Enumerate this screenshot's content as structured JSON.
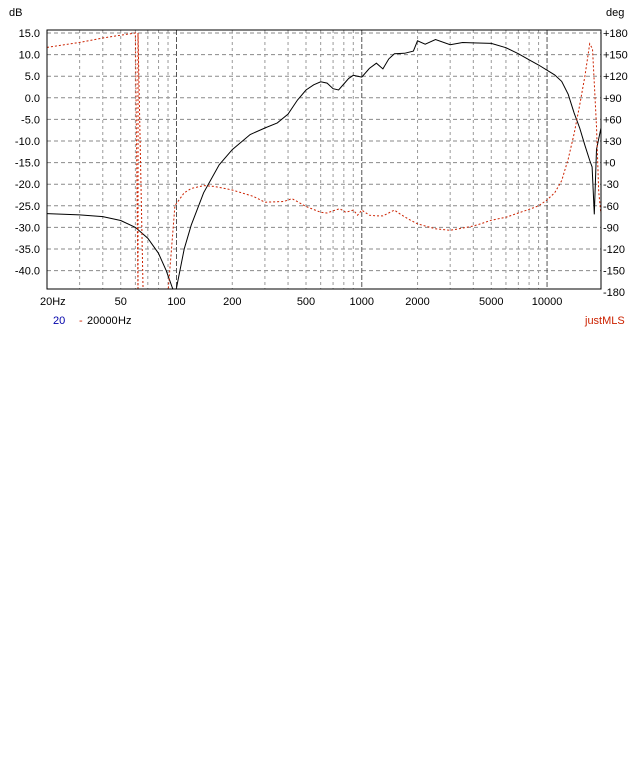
{
  "chart_data": {
    "type": "line",
    "y_unit": "dB",
    "y2_unit": "deg",
    "x_scale": "log",
    "xlim": [
      20,
      20000
    ],
    "ylim": [
      -45,
      15
    ],
    "y2lim": [
      -180,
      180
    ],
    "grid": true,
    "y_ticks": [
      "15.0",
      "10.0",
      "5.0",
      "0.0",
      "-5.0",
      "-10.0",
      "-15.0",
      "-20.0",
      "-25.0",
      "-30.0",
      "-35.0",
      "-40.0"
    ],
    "y_tick_values": [
      15,
      10,
      5,
      0,
      -5,
      -10,
      -15,
      -20,
      -25,
      -30,
      -35,
      -40
    ],
    "y2_ticks": [
      "+180",
      "+150",
      "+120",
      "+90",
      "+60",
      "+30",
      "+0",
      "-30",
      "-60",
      "-90",
      "-120",
      "-150",
      "-180"
    ],
    "y2_tick_values": [
      180,
      150,
      120,
      90,
      60,
      30,
      0,
      -30,
      -60,
      -90,
      -120,
      -150,
      -180
    ],
    "x_ticks": [
      "20Hz",
      "50",
      "100",
      "200",
      "500",
      "1000",
      "2000",
      "5000",
      "10000"
    ],
    "x_tick_values": [
      20,
      50,
      100,
      200,
      500,
      1000,
      2000,
      5000,
      10000
    ],
    "series": [
      {
        "axis": "left",
        "color": "#000000",
        "style": "solid",
        "points": [
          [
            20,
            -26.8
          ],
          [
            30,
            -27.1
          ],
          [
            40,
            -27.5
          ],
          [
            50,
            -28.4
          ],
          [
            60,
            -30.0
          ],
          [
            70,
            -32.5
          ],
          [
            80,
            -36.0
          ],
          [
            88,
            -40.0
          ],
          [
            95,
            -44.0
          ],
          [
            98,
            -45.0
          ],
          [
            100,
            -44.0
          ],
          [
            110,
            -35.0
          ],
          [
            120,
            -29.5
          ],
          [
            140,
            -22.0
          ],
          [
            170,
            -15.5
          ],
          [
            200,
            -12.0
          ],
          [
            250,
            -8.5
          ],
          [
            300,
            -7.0
          ],
          [
            350,
            -5.8
          ],
          [
            400,
            -3.8
          ],
          [
            450,
            -0.5
          ],
          [
            500,
            1.8
          ],
          [
            550,
            3.0
          ],
          [
            600,
            3.7
          ],
          [
            650,
            3.4
          ],
          [
            700,
            2.1
          ],
          [
            750,
            1.8
          ],
          [
            800,
            3.2
          ],
          [
            850,
            4.5
          ],
          [
            900,
            5.2
          ],
          [
            950,
            5.0
          ],
          [
            1000,
            4.8
          ],
          [
            1100,
            6.8
          ],
          [
            1200,
            8.0
          ],
          [
            1300,
            6.7
          ],
          [
            1400,
            9.0
          ],
          [
            1500,
            10.2
          ],
          [
            1700,
            10.3
          ],
          [
            1900,
            10.8
          ],
          [
            2000,
            13.2
          ],
          [
            2200,
            12.4
          ],
          [
            2500,
            13.5
          ],
          [
            3000,
            12.3
          ],
          [
            3500,
            12.8
          ],
          [
            4000,
            12.7
          ],
          [
            5000,
            12.6
          ],
          [
            6000,
            11.6
          ],
          [
            7000,
            10.2
          ],
          [
            8000,
            8.8
          ],
          [
            9000,
            7.6
          ],
          [
            10000,
            6.4
          ],
          [
            11000,
            5.3
          ],
          [
            12000,
            3.8
          ],
          [
            13000,
            0.8
          ],
          [
            14000,
            -3.5
          ],
          [
            15000,
            -7.0
          ],
          [
            16000,
            -11.0
          ],
          [
            17000,
            -14.5
          ],
          [
            17500,
            -16.0
          ],
          [
            18000,
            -27.0
          ],
          [
            18500,
            -12.0
          ],
          [
            19000,
            -9.5
          ],
          [
            20000,
            -5.0
          ]
        ]
      },
      {
        "axis": "right",
        "color": "#cc2200",
        "style": "dotted",
        "points": [
          [
            20,
            160
          ],
          [
            30,
            167
          ],
          [
            40,
            173
          ],
          [
            50,
            177
          ],
          [
            60,
            180
          ],
          [
            62,
            -180
          ],
          [
            62,
            180
          ],
          [
            66,
            -180
          ],
          [
            90,
            -180
          ],
          [
            94,
            -120
          ],
          [
            98,
            -60
          ],
          [
            110,
            -42
          ],
          [
            120,
            -36
          ],
          [
            140,
            -32
          ],
          [
            160,
            -33
          ],
          [
            200,
            -38
          ],
          [
            260,
            -47
          ],
          [
            300,
            -55
          ],
          [
            380,
            -54
          ],
          [
            420,
            -50
          ],
          [
            500,
            -61
          ],
          [
            600,
            -69
          ],
          [
            650,
            -70
          ],
          [
            700,
            -67
          ],
          [
            760,
            -64
          ],
          [
            820,
            -69
          ],
          [
            900,
            -66
          ],
          [
            950,
            -73
          ],
          [
            1000,
            -66
          ],
          [
            1100,
            -73
          ],
          [
            1200,
            -74
          ],
          [
            1300,
            -74
          ],
          [
            1500,
            -66
          ],
          [
            1600,
            -71
          ],
          [
            1800,
            -79
          ],
          [
            2000,
            -85
          ],
          [
            2200,
            -88
          ],
          [
            2500,
            -92
          ],
          [
            3000,
            -94
          ],
          [
            3500,
            -91
          ],
          [
            4000,
            -88
          ],
          [
            4500,
            -84
          ],
          [
            5000,
            -80
          ],
          [
            6000,
            -76
          ],
          [
            7000,
            -70
          ],
          [
            8000,
            -65
          ],
          [
            9000,
            -60
          ],
          [
            10000,
            -52
          ],
          [
            11000,
            -42
          ],
          [
            12000,
            -25
          ],
          [
            13000,
            5
          ],
          [
            14000,
            40
          ],
          [
            15000,
            80
          ],
          [
            16000,
            120
          ],
          [
            17000,
            165
          ],
          [
            17600,
            158
          ],
          [
            18000,
            110
          ],
          [
            18500,
            50
          ],
          [
            19000,
            -40
          ],
          [
            19500,
            -70
          ],
          [
            20000,
            -60
          ]
        ]
      }
    ]
  },
  "footer": {
    "range_from": "20",
    "range_sep": "-",
    "range_to": "20000",
    "range_unit": "Hz",
    "brand": "justMLS"
  }
}
